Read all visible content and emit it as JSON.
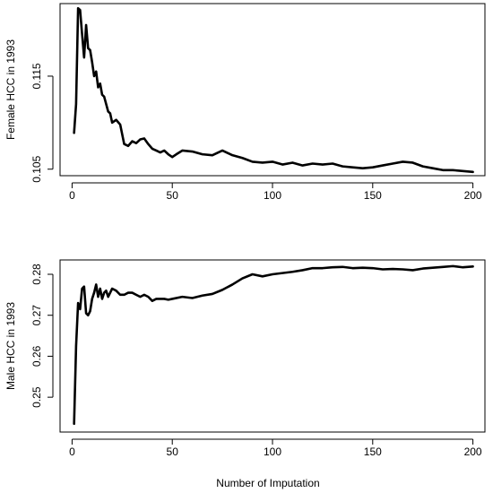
{
  "xlabel": "Number of Imputation",
  "chart_data": [
    {
      "type": "line",
      "title": "",
      "xlabel": "",
      "ylabel": "Female HCC in 1993",
      "xlim": [
        -6,
        206
      ],
      "ylim": [
        0.1043,
        0.1228
      ],
      "xticks": [
        0,
        50,
        100,
        150,
        200
      ],
      "yticks": [
        0.105,
        0.115
      ],
      "yticklabels": [
        "0.105",
        "0.115"
      ],
      "grid": false,
      "series": [
        {
          "x": [
            1,
            2,
            3,
            4,
            5,
            6,
            7,
            8,
            9,
            10,
            11,
            12,
            13,
            14,
            15,
            16,
            17,
            18,
            19,
            20,
            22,
            24,
            26,
            28,
            30,
            32,
            34,
            36,
            38,
            40,
            42,
            44,
            46,
            48,
            50,
            52,
            55,
            60,
            65,
            70,
            75,
            80,
            85,
            90,
            95,
            100,
            105,
            110,
            115,
            120,
            125,
            130,
            135,
            140,
            145,
            150,
            155,
            160,
            165,
            170,
            175,
            180,
            185,
            190,
            195,
            200
          ],
          "y": [
            0.1089,
            0.112,
            0.1223,
            0.1221,
            0.1195,
            0.117,
            0.1205,
            0.118,
            0.1178,
            0.1165,
            0.115,
            0.1155,
            0.1138,
            0.1142,
            0.113,
            0.1128,
            0.112,
            0.1112,
            0.111,
            0.11,
            0.1103,
            0.1098,
            0.1077,
            0.1075,
            0.108,
            0.1078,
            0.1082,
            0.1083,
            0.1077,
            0.1072,
            0.107,
            0.1068,
            0.107,
            0.1066,
            0.1063,
            0.1066,
            0.107,
            0.1069,
            0.1066,
            0.1065,
            0.107,
            0.1065,
            0.1062,
            0.1058,
            0.1057,
            0.1058,
            0.1055,
            0.1057,
            0.1054,
            0.1056,
            0.1055,
            0.1056,
            0.1053,
            0.1052,
            0.1051,
            0.1052,
            0.1054,
            0.1056,
            0.1058,
            0.1057,
            0.1053,
            0.1051,
            0.1049,
            0.1049,
            0.1048,
            0.1047
          ]
        }
      ]
    },
    {
      "type": "line",
      "title": "",
      "xlabel": "Number of Imputation",
      "ylabel": "Male HCC in 1993",
      "xlim": [
        -6,
        206
      ],
      "ylim": [
        0.2415,
        0.2835
      ],
      "xticks": [
        0,
        50,
        100,
        150,
        200
      ],
      "yticks": [
        0.25,
        0.26,
        0.27,
        0.28
      ],
      "yticklabels": [
        "0.25",
        "0.26",
        "0.27",
        "0.28"
      ],
      "grid": false,
      "series": [
        {
          "x": [
            1,
            2,
            3,
            4,
            5,
            6,
            7,
            8,
            9,
            10,
            11,
            12,
            13,
            14,
            15,
            16,
            17,
            18,
            19,
            20,
            22,
            24,
            26,
            28,
            30,
            32,
            34,
            36,
            38,
            40,
            42,
            44,
            46,
            48,
            50,
            55,
            60,
            65,
            70,
            75,
            80,
            85,
            90,
            95,
            100,
            105,
            110,
            115,
            120,
            125,
            130,
            135,
            140,
            145,
            150,
            155,
            160,
            165,
            170,
            175,
            180,
            185,
            190,
            195,
            200
          ],
          "y": [
            0.2435,
            0.2625,
            0.273,
            0.2715,
            0.2765,
            0.277,
            0.2705,
            0.27,
            0.271,
            0.274,
            0.2755,
            0.2775,
            0.2745,
            0.2765,
            0.274,
            0.2755,
            0.276,
            0.2745,
            0.2755,
            0.2765,
            0.276,
            0.275,
            0.275,
            0.2755,
            0.2755,
            0.275,
            0.2745,
            0.275,
            0.2745,
            0.2735,
            0.274,
            0.274,
            0.274,
            0.2738,
            0.274,
            0.2745,
            0.2742,
            0.2748,
            0.2752,
            0.2762,
            0.2775,
            0.279,
            0.28,
            0.2795,
            0.28,
            0.2803,
            0.2806,
            0.281,
            0.2815,
            0.2815,
            0.2817,
            0.2818,
            0.2815,
            0.2816,
            0.2815,
            0.2812,
            0.2813,
            0.2812,
            0.281,
            0.2814,
            0.2816,
            0.2818,
            0.282,
            0.2817,
            0.2819
          ]
        }
      ]
    }
  ]
}
